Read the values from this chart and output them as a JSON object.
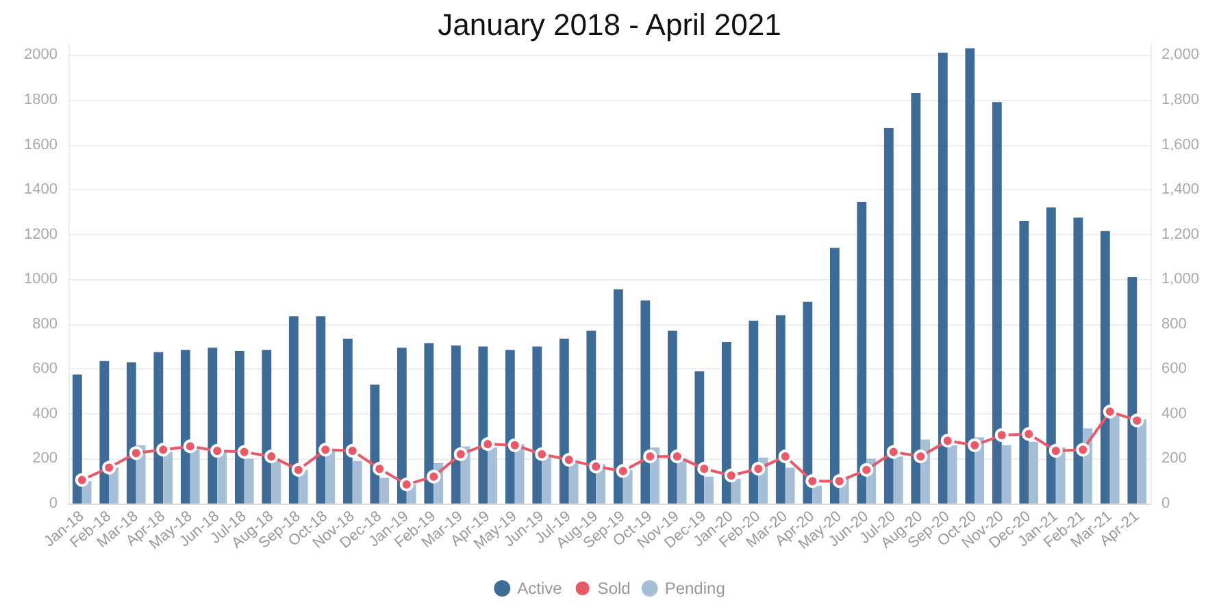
{
  "chart_data": {
    "type": "bar",
    "title": "January 2018 - April 2021",
    "categories": [
      "Jan-18",
      "Feb-18",
      "Mar-18",
      "Apr-18",
      "May-18",
      "Jun-18",
      "Jul-18",
      "Aug-18",
      "Sep-18",
      "Oct-18",
      "Nov-18",
      "Dec-18",
      "Jan-19",
      "Feb-19",
      "Mar-19",
      "Apr-19",
      "May-19",
      "Jun-19",
      "Jul-19",
      "Aug-19",
      "Sep-19",
      "Oct-19",
      "Nov-19",
      "Dec-19",
      "Jan-20",
      "Feb-20",
      "Mar-20",
      "Apr-20",
      "May-20",
      "Jun-20",
      "Jul-20",
      "Aug-20",
      "Sep-20",
      "Oct-20",
      "Nov-20",
      "Dec-20",
      "Jan-21",
      "Feb-21",
      "Mar-21",
      "Apr-21"
    ],
    "series": [
      {
        "name": "Active",
        "color": "#3f6c97",
        "values": [
          575,
          635,
          630,
          675,
          685,
          695,
          680,
          685,
          835,
          835,
          735,
          530,
          695,
          715,
          705,
          700,
          685,
          700,
          735,
          770,
          955,
          905,
          770,
          590,
          720,
          815,
          840,
          900,
          1140,
          1345,
          1675,
          1830,
          2010,
          2030,
          1790,
          1260,
          1320,
          1275,
          1215,
          1010
        ]
      },
      {
        "name": "Sold",
        "type": "line",
        "color": "#e8596a",
        "marker": "circle",
        "line_style": "solid",
        "values": [
          105,
          160,
          225,
          240,
          255,
          235,
          230,
          210,
          150,
          240,
          235,
          155,
          85,
          120,
          220,
          265,
          260,
          220,
          195,
          165,
          145,
          210,
          210,
          155,
          125,
          155,
          210,
          100,
          100,
          150,
          230,
          210,
          280,
          260,
          305,
          310,
          235,
          240,
          410,
          370
        ]
      },
      {
        "name": "Pending",
        "color": "#a7bfd6",
        "values": [
          100,
          160,
          260,
          230,
          240,
          235,
          200,
          190,
          150,
          240,
          190,
          115,
          85,
          180,
          255,
          250,
          265,
          210,
          180,
          175,
          150,
          250,
          195,
          120,
          110,
          205,
          160,
          80,
          110,
          200,
          210,
          285,
          260,
          295,
          260,
          275,
          250,
          335,
          400,
          375
        ]
      }
    ],
    "ylim": [
      0,
      2050
    ],
    "yticks": [
      0,
      200,
      400,
      600,
      800,
      1000,
      1200,
      1400,
      1600,
      1800,
      2000
    ],
    "y2lim": [
      0,
      2050
    ],
    "y2ticks": [
      {
        "value": 0,
        "label": "0"
      },
      {
        "value": 200,
        "label": "200"
      },
      {
        "value": 400,
        "label": "400"
      },
      {
        "value": 600,
        "label": "600"
      },
      {
        "value": 800,
        "label": "800"
      },
      {
        "value": 1000,
        "label": "1,000"
      },
      {
        "value": 1200,
        "label": "1,200"
      },
      {
        "value": 1400,
        "label": "1,400"
      },
      {
        "value": 1600,
        "label": "1,600"
      },
      {
        "value": 1800,
        "label": "1,800"
      },
      {
        "value": 2000,
        "label": "2,000"
      }
    ],
    "grid": "y",
    "legend": "bottom"
  }
}
